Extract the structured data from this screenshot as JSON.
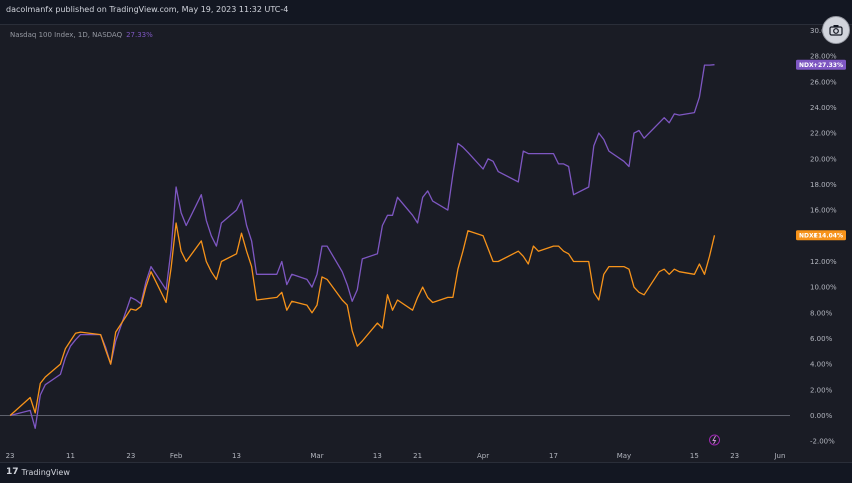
{
  "header": {
    "publisher_text": "dacolmanfx published on TradingView.com, May 19, 2023 11:32 UTC-4",
    "symbol_text": "Nasdaq 100 Index, 1D, NASDAQ",
    "symbol_change": "27.33%"
  },
  "footer": {
    "logo_mark": "17",
    "logo_text": "TradingView"
  },
  "colors": {
    "background": "#1a1c25",
    "ndx": "#7e57c2",
    "ndxe": "#f7931a",
    "zero_line": "#5d606b"
  },
  "chart_data": {
    "type": "line",
    "y_unit": "%",
    "ylim": [
      -3,
      30.5
    ],
    "ytick_labels": [
      "-2.00%",
      "0.00%",
      "2.00%",
      "4.00%",
      "6.00%",
      "8.00%",
      "10.00%",
      "12.00%",
      "14.00%",
      "16.00%",
      "18.00%",
      "20.00%",
      "22.00%",
      "24.00%",
      "26.00%",
      "28.00%",
      "30.00%"
    ],
    "ytick_values": [
      -2,
      0,
      2,
      4,
      6,
      8,
      10,
      12,
      14,
      16,
      18,
      20,
      22,
      24,
      26,
      28,
      30
    ],
    "xtick_labels": [
      "23",
      "11",
      "23",
      "Feb",
      "13",
      "Mar",
      "13",
      "21",
      "Apr",
      "17",
      "May",
      "15",
      "23",
      "Jun"
    ],
    "xtick_dates": [
      "2022-12-30",
      "2023-01-11",
      "2023-01-23",
      "2023-02-01",
      "2023-02-13",
      "2023-03-01",
      "2023-03-13",
      "2023-03-21",
      "2023-04-03",
      "2023-04-17",
      "2023-05-01",
      "2023-05-15",
      "2023-05-23",
      "2023-06-01"
    ],
    "x_range": [
      "2022-12-28",
      "2023-06-03"
    ],
    "series": [
      {
        "name": "NDX",
        "label": "+27.33%",
        "color": "#7e57c2",
        "x": [
          "2022-12-30",
          "2023-01-03",
          "2023-01-04",
          "2023-01-05",
          "2023-01-06",
          "2023-01-09",
          "2023-01-10",
          "2023-01-11",
          "2023-01-12",
          "2023-01-13",
          "2023-01-17",
          "2023-01-18",
          "2023-01-19",
          "2023-01-20",
          "2023-01-23",
          "2023-01-24",
          "2023-01-25",
          "2023-01-26",
          "2023-01-27",
          "2023-01-30",
          "2023-01-31",
          "2023-02-01",
          "2023-02-02",
          "2023-02-03",
          "2023-02-06",
          "2023-02-07",
          "2023-02-08",
          "2023-02-09",
          "2023-02-10",
          "2023-02-13",
          "2023-02-14",
          "2023-02-15",
          "2023-02-16",
          "2023-02-17",
          "2023-02-21",
          "2023-02-22",
          "2023-02-23",
          "2023-02-24",
          "2023-02-27",
          "2023-02-28",
          "2023-03-01",
          "2023-03-02",
          "2023-03-03",
          "2023-03-06",
          "2023-03-07",
          "2023-03-08",
          "2023-03-09",
          "2023-03-10",
          "2023-03-13",
          "2023-03-14",
          "2023-03-15",
          "2023-03-16",
          "2023-03-17",
          "2023-03-20",
          "2023-03-21",
          "2023-03-22",
          "2023-03-23",
          "2023-03-24",
          "2023-03-27",
          "2023-03-28",
          "2023-03-29",
          "2023-03-30",
          "2023-03-31",
          "2023-04-03",
          "2023-04-04",
          "2023-04-05",
          "2023-04-06",
          "2023-04-10",
          "2023-04-11",
          "2023-04-12",
          "2023-04-13",
          "2023-04-14",
          "2023-04-17",
          "2023-04-18",
          "2023-04-19",
          "2023-04-20",
          "2023-04-21",
          "2023-04-24",
          "2023-04-25",
          "2023-04-26",
          "2023-04-27",
          "2023-04-28",
          "2023-05-01",
          "2023-05-02",
          "2023-05-03",
          "2023-05-04",
          "2023-05-05",
          "2023-05-08",
          "2023-05-09",
          "2023-05-10",
          "2023-05-11",
          "2023-05-12",
          "2023-05-15",
          "2023-05-16",
          "2023-05-17",
          "2023-05-18",
          "2023-05-19"
        ],
        "y": [
          0.0,
          0.4,
          -1.0,
          1.6,
          2.4,
          3.2,
          4.5,
          5.4,
          5.9,
          6.3,
          6.3,
          5.3,
          4.0,
          5.8,
          9.2,
          9.0,
          8.7,
          10.4,
          11.6,
          9.8,
          12.9,
          17.8,
          15.8,
          14.8,
          17.2,
          15.2,
          14.0,
          13.2,
          15.0,
          16.0,
          16.8,
          14.8,
          13.6,
          11.0,
          11.0,
          12.0,
          10.2,
          11.0,
          10.6,
          10.0,
          11.0,
          13.2,
          13.2,
          11.2,
          10.2,
          8.9,
          9.8,
          12.2,
          12.6,
          14.8,
          15.6,
          15.6,
          17.0,
          15.6,
          15.0,
          17.0,
          17.5,
          16.7,
          16.0,
          18.8,
          21.2,
          20.9,
          20.5,
          19.2,
          20.0,
          19.8,
          19.0,
          18.2,
          20.6,
          20.4,
          20.4,
          20.4,
          20.4,
          19.6,
          19.6,
          19.4,
          17.2,
          17.8,
          21.0,
          22.0,
          21.5,
          20.6,
          19.8,
          19.4,
          22.0,
          22.2,
          21.6,
          22.8,
          23.2,
          22.8,
          23.5,
          23.4,
          23.6,
          24.8,
          27.3,
          27.3,
          27.33
        ]
      },
      {
        "name": "NDXE",
        "label": "+14.04%",
        "color": "#f7931a",
        "x": [
          "2022-12-30",
          "2023-01-03",
          "2023-01-04",
          "2023-01-05",
          "2023-01-06",
          "2023-01-09",
          "2023-01-10",
          "2023-01-11",
          "2023-01-12",
          "2023-01-13",
          "2023-01-17",
          "2023-01-18",
          "2023-01-19",
          "2023-01-20",
          "2023-01-23",
          "2023-01-24",
          "2023-01-25",
          "2023-01-26",
          "2023-01-27",
          "2023-01-30",
          "2023-01-31",
          "2023-02-01",
          "2023-02-02",
          "2023-02-03",
          "2023-02-06",
          "2023-02-07",
          "2023-02-08",
          "2023-02-09",
          "2023-02-10",
          "2023-02-13",
          "2023-02-14",
          "2023-02-15",
          "2023-02-16",
          "2023-02-17",
          "2023-02-21",
          "2023-02-22",
          "2023-02-23",
          "2023-02-24",
          "2023-02-27",
          "2023-02-28",
          "2023-03-01",
          "2023-03-02",
          "2023-03-03",
          "2023-03-06",
          "2023-03-07",
          "2023-03-08",
          "2023-03-09",
          "2023-03-10",
          "2023-03-13",
          "2023-03-14",
          "2023-03-15",
          "2023-03-16",
          "2023-03-17",
          "2023-03-20",
          "2023-03-21",
          "2023-03-22",
          "2023-03-23",
          "2023-03-24",
          "2023-03-27",
          "2023-03-28",
          "2023-03-29",
          "2023-03-30",
          "2023-03-31",
          "2023-04-03",
          "2023-04-04",
          "2023-04-05",
          "2023-04-06",
          "2023-04-10",
          "2023-04-11",
          "2023-04-12",
          "2023-04-13",
          "2023-04-14",
          "2023-04-17",
          "2023-04-18",
          "2023-04-19",
          "2023-04-20",
          "2023-04-21",
          "2023-04-24",
          "2023-04-25",
          "2023-04-26",
          "2023-04-27",
          "2023-04-28",
          "2023-05-01",
          "2023-05-02",
          "2023-05-03",
          "2023-05-04",
          "2023-05-05",
          "2023-05-08",
          "2023-05-09",
          "2023-05-10",
          "2023-05-11",
          "2023-05-12",
          "2023-05-15",
          "2023-05-16",
          "2023-05-17",
          "2023-05-18",
          "2023-05-19"
        ],
        "y": [
          0.0,
          1.4,
          0.2,
          2.5,
          3.0,
          4.0,
          5.2,
          5.8,
          6.4,
          6.5,
          6.3,
          5.1,
          4.0,
          6.5,
          8.3,
          8.2,
          8.5,
          10.0,
          11.2,
          8.8,
          11.5,
          15.0,
          12.8,
          12.0,
          13.6,
          12.0,
          11.2,
          10.6,
          12.0,
          12.6,
          14.2,
          12.8,
          11.6,
          9.0,
          9.2,
          9.6,
          8.2,
          8.9,
          8.6,
          8.0,
          8.6,
          10.8,
          10.6,
          9.0,
          8.6,
          6.6,
          5.4,
          5.8,
          7.2,
          6.8,
          9.4,
          8.2,
          9.0,
          8.2,
          9.2,
          10.0,
          9.2,
          8.8,
          9.2,
          9.2,
          11.4,
          12.8,
          14.4,
          14.0,
          13.0,
          12.0,
          12.0,
          12.8,
          12.4,
          11.8,
          13.2,
          12.8,
          13.2,
          13.2,
          12.8,
          12.6,
          12.0,
          12.0,
          9.6,
          9.0,
          11.0,
          11.6,
          11.6,
          11.4,
          10.0,
          9.6,
          9.4,
          11.2,
          11.4,
          11.0,
          11.4,
          11.2,
          11.0,
          11.8,
          11.0,
          12.4,
          14.04
        ]
      }
    ]
  }
}
